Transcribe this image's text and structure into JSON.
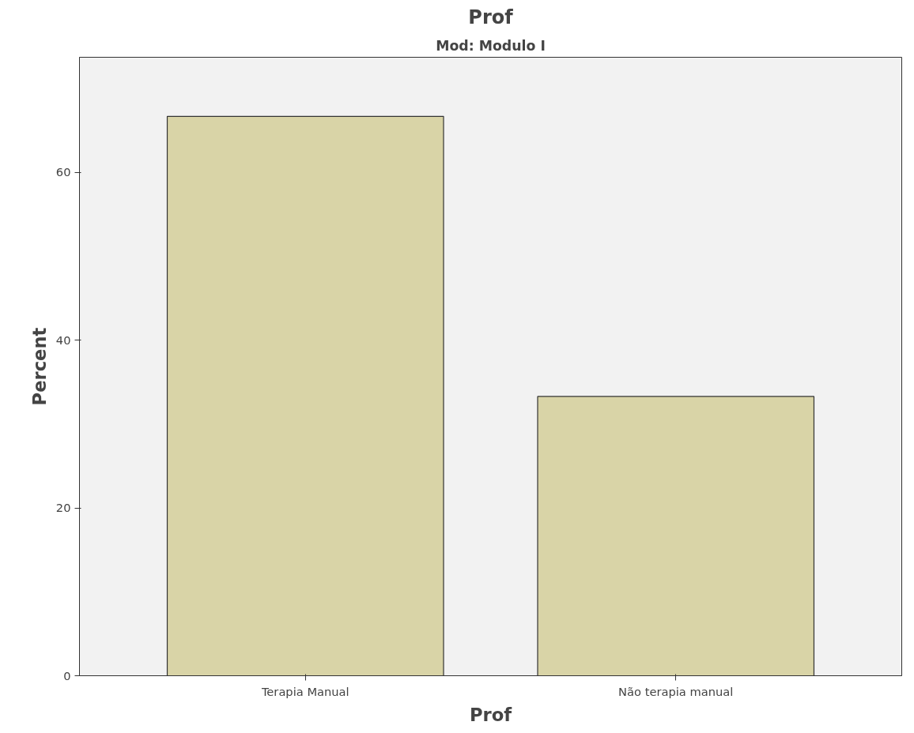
{
  "chart_data": {
    "type": "bar",
    "title": "Prof",
    "subtitle": "Mod: Modulo I",
    "xlabel": "Prof",
    "ylabel": "Percent",
    "categories": [
      "Terapia Manual",
      "Não terapia manual"
    ],
    "values": [
      66.7,
      33.3
    ],
    "color": "#d9d4a7",
    "ylim": [
      0,
      73.75
    ],
    "yticks": [
      0,
      20,
      40,
      60
    ],
    "grid": false
  }
}
